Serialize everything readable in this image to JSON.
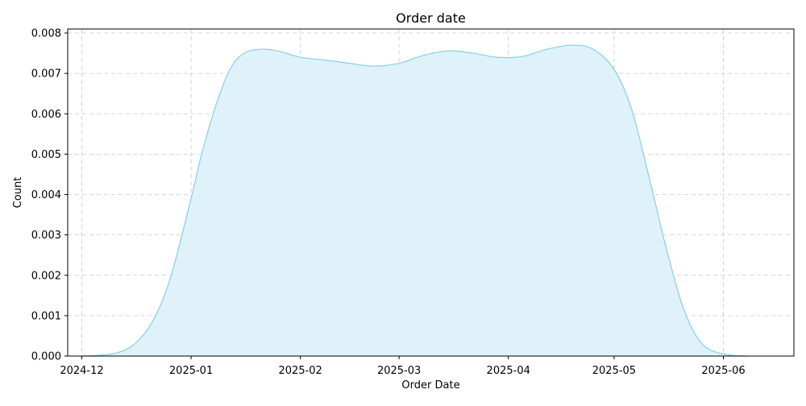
{
  "chart_data": {
    "type": "area",
    "title": "Order date",
    "xlabel": "Order Date",
    "ylabel": "Count",
    "x_ticks": [
      "2024-12",
      "2025-01",
      "2025-02",
      "2025-03",
      "2025-04",
      "2025-05",
      "2025-06"
    ],
    "y_ticks": [
      "0.000",
      "0.001",
      "0.002",
      "0.003",
      "0.004",
      "0.005",
      "0.006",
      "0.007",
      "0.008"
    ],
    "xlim": [
      "2024-11-27",
      "2025-06-21"
    ],
    "ylim": [
      0,
      0.0081
    ],
    "grid": true,
    "line_color": "#87ceeb",
    "fill_color": "#dff1f9",
    "series": [
      {
        "x": [
          "2024-12-01",
          "2024-12-06",
          "2024-12-11",
          "2024-12-16",
          "2024-12-21",
          "2024-12-26",
          "2025-01-01",
          "2025-01-04",
          "2025-01-08",
          "2025-01-12",
          "2025-01-16",
          "2025-01-21",
          "2025-01-26",
          "2025-02-01",
          "2025-02-08",
          "2025-02-15",
          "2025-02-22",
          "2025-03-01",
          "2025-03-08",
          "2025-03-15",
          "2025-03-22",
          "2025-03-29",
          "2025-04-05",
          "2025-04-12",
          "2025-04-19",
          "2025-04-25",
          "2025-05-01",
          "2025-05-06",
          "2025-05-11",
          "2025-05-16",
          "2025-05-21",
          "2025-05-26",
          "2025-06-01",
          "2025-06-08"
        ],
        "y": [
          0.0,
          2e-05,
          8e-05,
          0.0003,
          0.00085,
          0.0019,
          0.0039,
          0.005,
          0.0062,
          0.0071,
          0.0075,
          0.0076,
          0.00755,
          0.0074,
          0.00733,
          0.00725,
          0.00718,
          0.00725,
          0.00745,
          0.00756,
          0.0075,
          0.0074,
          0.00742,
          0.0076,
          0.0077,
          0.0076,
          0.0071,
          0.0061,
          0.0044,
          0.0026,
          0.0011,
          0.0003,
          5e-05,
          0.0
        ]
      }
    ]
  }
}
